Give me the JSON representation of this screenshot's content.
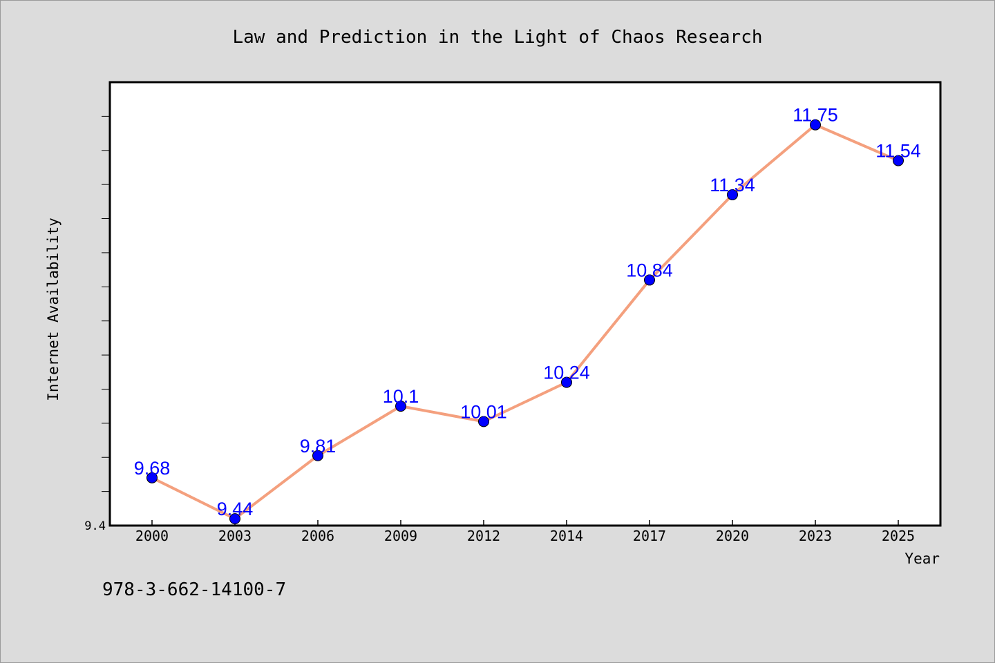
{
  "chart_data": {
    "type": "line",
    "title": "Law and Prediction in the Light of Chaos Research",
    "xlabel": "Year",
    "ylabel": "Internet Availability",
    "categories": [
      "2000",
      "2003",
      "2006",
      "2009",
      "2012",
      "2014",
      "2017",
      "2020",
      "2023",
      "2025"
    ],
    "series": [
      {
        "values": [
          9.68,
          9.44,
          9.81,
          10.1,
          10.01,
          10.24,
          10.84,
          11.34,
          11.75,
          11.54
        ]
      }
    ],
    "data_labels": [
      "9.68",
      "9.44",
      "9.81",
      "10.1",
      "10.01",
      "10.24",
      "10.84",
      "11.34",
      "11.75",
      "11.54"
    ],
    "ylim": [
      9.4,
      12.0
    ],
    "y_tick_labels": [
      "9.4"
    ],
    "grid": false,
    "line_color": "#f4a07e",
    "marker_color": "#0000ff",
    "label_color": "#0000ff"
  },
  "footnote": "978-3-662-14100-7"
}
